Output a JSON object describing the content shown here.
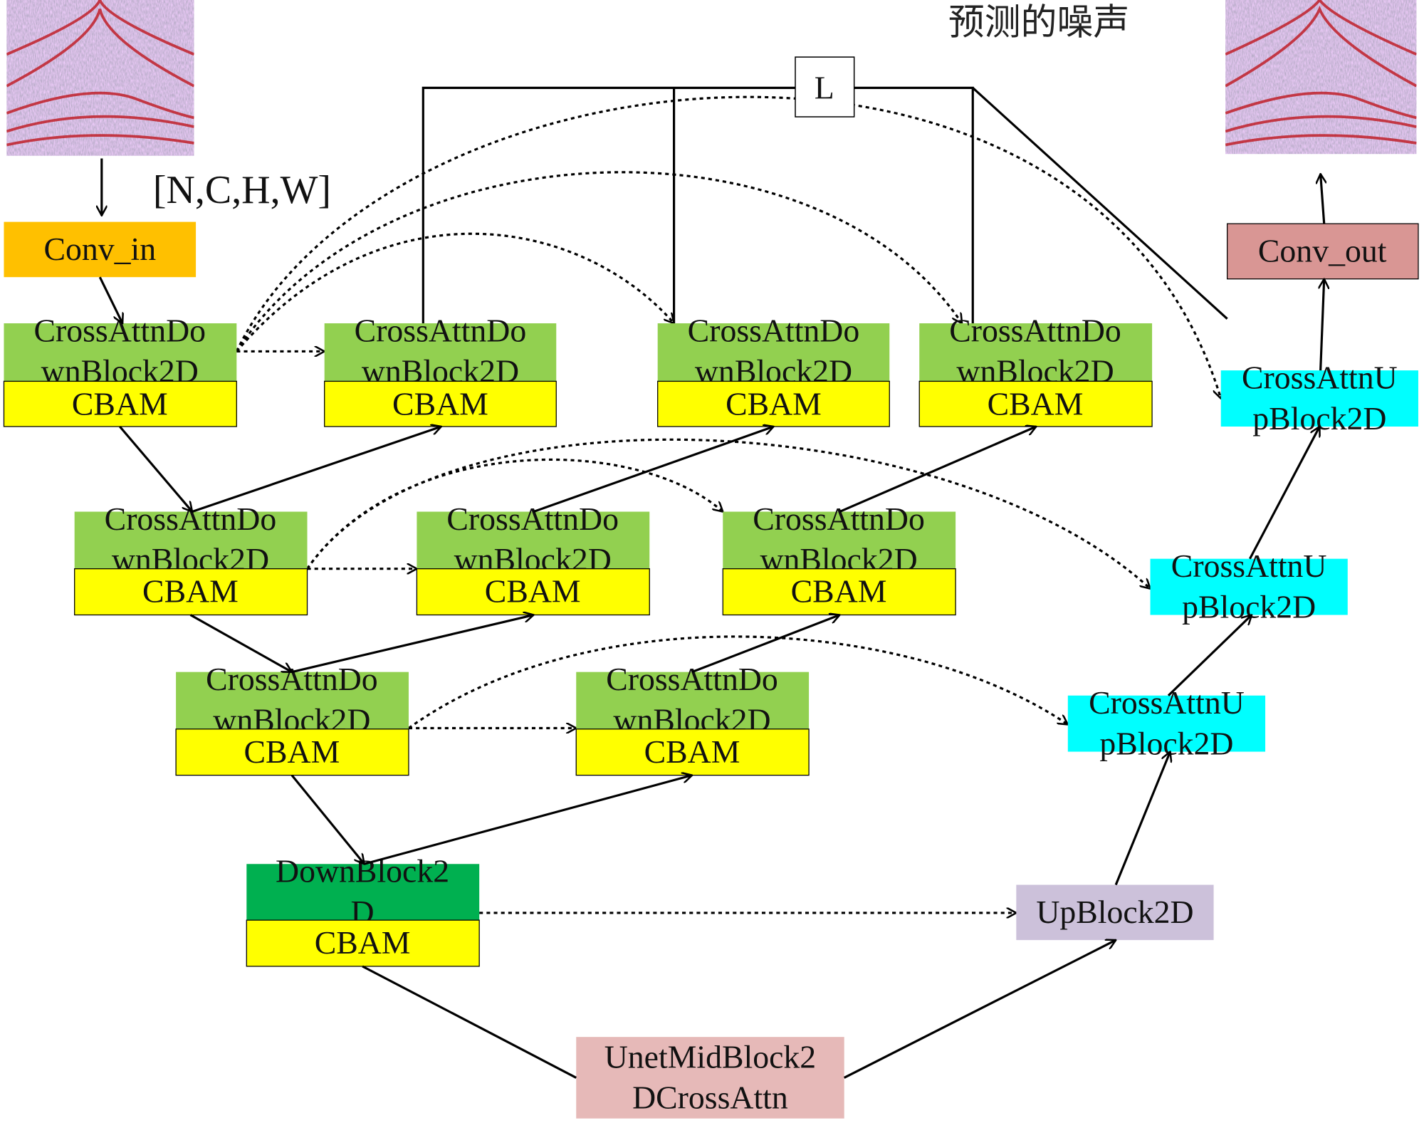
{
  "title": "预测的噪声",
  "loss_label": "L",
  "input_shape": "[N,C,H,W]",
  "images": {
    "input": "seismic-input-image",
    "output": "seismic-output-image"
  },
  "colors": {
    "conv_in": "#FFC000",
    "down_block": "#92D050",
    "down_block_last": "#00B050",
    "cbam": "#FFFF00",
    "up_block_cross": "#00FFFF",
    "up_block": "#CCC1DA",
    "mid_block": "#E6B9B8",
    "conv_out": "#D99694"
  },
  "blocks": {
    "conv_in": "Conv_in",
    "conv_out": "Conv_out",
    "cross_down_l1": "CrossAttnDo",
    "cross_down_l2": "wnBlock2D",
    "cbam": "CBAM",
    "down_l1": "DownBlock2",
    "down_l2": "D",
    "mid_l1": "UnetMidBlock2",
    "mid_l2": "DCrossAttn",
    "up": "UpBlock2D",
    "cross_up_l1": "CrossAttnU",
    "cross_up_l2": "pBlock2D"
  }
}
